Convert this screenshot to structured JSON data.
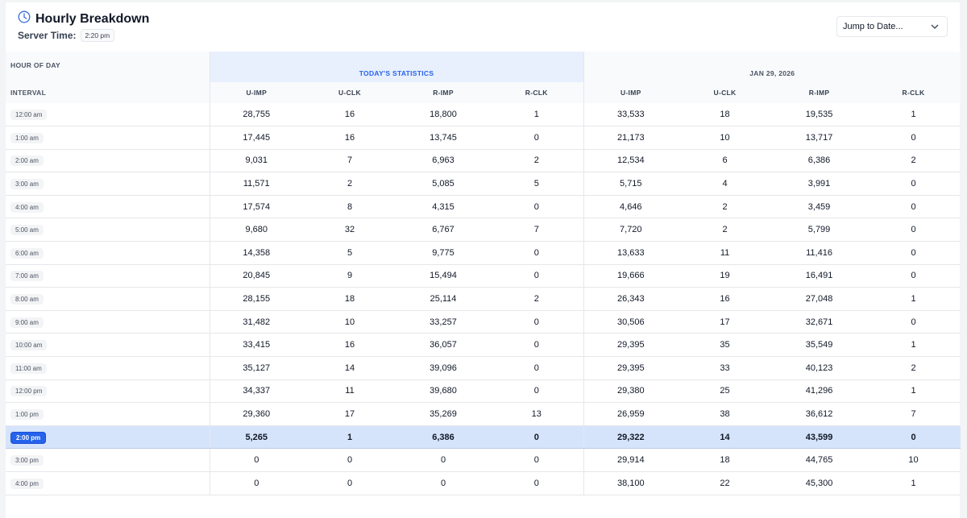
{
  "header": {
    "title": "Hourly Breakdown",
    "server_time_label": "Server Time:",
    "server_time": "2:20 pm",
    "jump_placeholder": "Jump to Date..."
  },
  "table": {
    "hour_of_day": "HOUR OF DAY",
    "interval": "INTERVAL",
    "group_today": "TODAY'S STATISTICS",
    "group_past": "JAN 29, 2026",
    "columns": [
      "U-IMP",
      "U-CLK",
      "R-IMP",
      "R-CLK",
      "U-IMP",
      "U-CLK",
      "R-IMP",
      "R-CLK"
    ],
    "current_row": "2:00 pm",
    "rows": [
      [
        "12:00 am",
        "28,755",
        "16",
        "18,800",
        "1",
        "33,533",
        "18",
        "19,535",
        "1"
      ],
      [
        "1:00 am",
        "17,445",
        "16",
        "13,745",
        "0",
        "21,173",
        "10",
        "13,717",
        "0"
      ],
      [
        "2:00 am",
        "9,031",
        "7",
        "6,963",
        "2",
        "12,534",
        "6",
        "6,386",
        "2"
      ],
      [
        "3:00 am",
        "11,571",
        "2",
        "5,085",
        "5",
        "5,715",
        "4",
        "3,991",
        "0"
      ],
      [
        "4:00 am",
        "17,574",
        "8",
        "4,315",
        "0",
        "4,646",
        "2",
        "3,459",
        "0"
      ],
      [
        "5:00 am",
        "9,680",
        "32",
        "6,767",
        "7",
        "7,720",
        "2",
        "5,799",
        "0"
      ],
      [
        "6:00 am",
        "14,358",
        "5",
        "9,775",
        "0",
        "13,633",
        "11",
        "11,416",
        "0"
      ],
      [
        "7:00 am",
        "20,845",
        "9",
        "15,494",
        "0",
        "19,666",
        "19",
        "16,491",
        "0"
      ],
      [
        "8:00 am",
        "28,155",
        "18",
        "25,114",
        "2",
        "26,343",
        "16",
        "27,048",
        "1"
      ],
      [
        "9:00 am",
        "31,482",
        "10",
        "33,257",
        "0",
        "30,506",
        "17",
        "32,671",
        "0"
      ],
      [
        "10:00 am",
        "33,415",
        "16",
        "36,057",
        "0",
        "29,395",
        "35",
        "35,549",
        "1"
      ],
      [
        "11:00 am",
        "35,127",
        "14",
        "39,096",
        "0",
        "29,395",
        "33",
        "40,123",
        "2"
      ],
      [
        "12:00 pm",
        "34,337",
        "11",
        "39,680",
        "0",
        "29,380",
        "25",
        "41,296",
        "1"
      ],
      [
        "1:00 pm",
        "29,360",
        "17",
        "35,269",
        "13",
        "26,959",
        "38",
        "36,612",
        "7"
      ],
      [
        "2:00 pm",
        "5,265",
        "1",
        "6,386",
        "0",
        "29,322",
        "14",
        "43,599",
        "0"
      ],
      [
        "3:00 pm",
        "0",
        "0",
        "0",
        "0",
        "29,914",
        "18",
        "44,765",
        "10"
      ],
      [
        "4:00 pm",
        "0",
        "0",
        "0",
        "0",
        "38,100",
        "22",
        "45,300",
        "1"
      ]
    ]
  }
}
